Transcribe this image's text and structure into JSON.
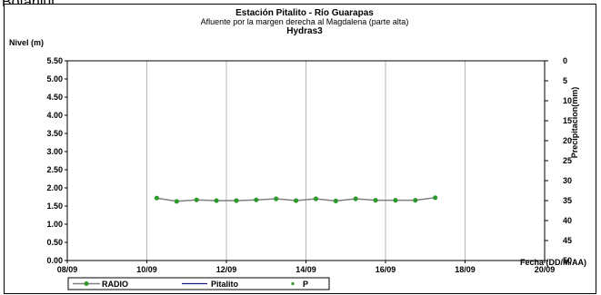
{
  "page_header": {
    "label": "Botaniul"
  },
  "chart_data": {
    "type": "line",
    "title": "Estación Pitalito  - Río Guarapas",
    "subtitle": "Afluente por la margen derecha al Magdalena (parte alta)",
    "subtitle2": "Hydras3",
    "ylabel": "Nivel (m)",
    "y2label": "Precipitacion(mm)",
    "xlabel": "Fecha (DD/M/AA)",
    "ylim": [
      0,
      5.5
    ],
    "y2lim": [
      0,
      50
    ],
    "y2_inverted": true,
    "xlim": [
      "2009-09-08",
      "2009-09-20"
    ],
    "xticks": [
      "08/09",
      "10/09",
      "12/09",
      "14/09",
      "16/09",
      "18/09",
      "20/09"
    ],
    "yticks": [
      "0.00",
      "0.50",
      "1.00",
      "1.50",
      "2.00",
      "2.50",
      "3.00",
      "3.50",
      "4.00",
      "4.50",
      "5.00",
      "5.50"
    ],
    "y2ticks": [
      "0",
      "5",
      "10",
      "15",
      "20",
      "25",
      "30",
      "35",
      "40",
      "45",
      "50"
    ],
    "grid": "vertical",
    "legend_position": "bottom",
    "series": [
      {
        "name": "RADIO",
        "color": "#808080",
        "marker_color": "#2e9a2e",
        "x": [
          "2009-09-10 06:00",
          "2009-09-10 18:00",
          "2009-09-11 06:00",
          "2009-09-11 18:00",
          "2009-09-12 06:00",
          "2009-09-12 18:00",
          "2009-09-13 06:00",
          "2009-09-13 18:00",
          "2009-09-14 06:00",
          "2009-09-14 18:00",
          "2009-09-15 06:00",
          "2009-09-15 18:00",
          "2009-09-16 06:00",
          "2009-09-16 18:00",
          "2009-09-17 06:00"
        ],
        "values": [
          1.72,
          1.63,
          1.67,
          1.65,
          1.65,
          1.67,
          1.7,
          1.65,
          1.7,
          1.64,
          1.7,
          1.66,
          1.66,
          1.66,
          1.73
        ]
      },
      {
        "name": "Pitalito",
        "color": "#1a1a8c",
        "values": []
      },
      {
        "name": "P",
        "color": "#2e9a2e",
        "values": []
      }
    ]
  }
}
